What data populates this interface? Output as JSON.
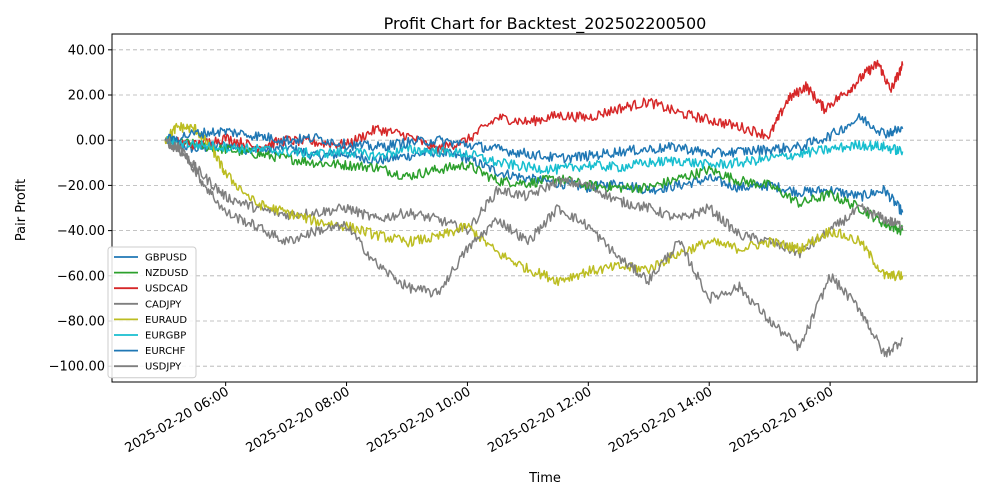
{
  "chart_data": {
    "type": "line",
    "title": "Profit Chart for Backtest_202502200500",
    "xlabel": "Time",
    "ylabel": "Pair Profit",
    "ylim": [
      -107,
      47
    ],
    "y_ticks": [
      {
        "value": 40,
        "label": "40.00"
      },
      {
        "value": 20,
        "label": "20.00"
      },
      {
        "value": 0,
        "label": "0.00"
      },
      {
        "value": -20,
        "label": "−20.00"
      },
      {
        "value": -40,
        "label": "−40.00"
      },
      {
        "value": -60,
        "label": "−60.00"
      },
      {
        "value": -80,
        "label": "−80.00"
      },
      {
        "value": -100,
        "label": "−100.00"
      }
    ],
    "xlim_hours": [
      4.12,
      18.43
    ],
    "x_ticks": [
      {
        "hour": 6,
        "label": "2025-02-20 06:00"
      },
      {
        "hour": 8,
        "label": "2025-02-20 08:00"
      },
      {
        "hour": 10,
        "label": "2025-02-20 10:00"
      },
      {
        "hour": 12,
        "label": "2025-02-20 12:00"
      },
      {
        "hour": 14,
        "label": "2025-02-20 14:00"
      },
      {
        "hour": 16,
        "label": "2025-02-20 16:00"
      }
    ],
    "grid": "horizontal-dashed",
    "legend_position": "lower-left",
    "series": [
      {
        "name": "GBPUSD",
        "color": "#1f77b4",
        "x": [
          5.0,
          5.5,
          6.0,
          6.5,
          7.0,
          7.5,
          8.0,
          8.5,
          9.0,
          9.5,
          10.0,
          10.5,
          11.0,
          11.5,
          12.0,
          12.5,
          13.0,
          13.5,
          14.0,
          14.5,
          15.0,
          15.5,
          16.0,
          16.5,
          16.9,
          17.2
        ],
        "y": [
          0,
          -4,
          -2,
          -5,
          -3,
          -7,
          -6,
          -9,
          -7,
          -5,
          -8,
          -14,
          -17,
          -19,
          -21,
          -19,
          -22,
          -20,
          -17,
          -21,
          -20,
          -23,
          -22,
          -25,
          -22,
          -32
        ]
      },
      {
        "name": "NZDUSD",
        "color": "#2ca02c",
        "x": [
          5.0,
          5.5,
          6.0,
          6.5,
          7.0,
          7.5,
          8.0,
          8.5,
          9.0,
          9.5,
          10.0,
          10.5,
          11.0,
          11.5,
          12.0,
          12.5,
          13.0,
          13.5,
          14.0,
          14.5,
          15.0,
          15.5,
          16.0,
          16.5,
          16.9,
          17.2
        ],
        "y": [
          0,
          -2,
          -4,
          -6,
          -8,
          -10,
          -11,
          -12,
          -16,
          -13,
          -11,
          -18,
          -19,
          -17,
          -20,
          -21,
          -21,
          -17,
          -13,
          -18,
          -20,
          -28,
          -24,
          -30,
          -37,
          -40
        ]
      },
      {
        "name": "USDCAD",
        "color": "#d62728",
        "x": [
          5.0,
          5.5,
          6.0,
          6.5,
          7.0,
          7.5,
          8.0,
          8.5,
          9.0,
          9.5,
          10.0,
          10.5,
          11.0,
          11.5,
          12.0,
          12.5,
          13.0,
          13.5,
          14.0,
          14.5,
          15.0,
          15.3,
          15.6,
          15.9,
          16.3,
          16.6,
          16.8,
          17.0,
          17.2
        ],
        "y": [
          0,
          -2,
          1,
          -3,
          0,
          -1,
          -2,
          5,
          2,
          -4,
          0,
          10,
          8,
          11,
          10,
          14,
          17,
          12,
          9,
          6,
          2,
          18,
          24,
          14,
          22,
          30,
          34,
          22,
          33
        ]
      },
      {
        "name": "CADJPY",
        "color": "#7f7f7f",
        "x": [
          5.0,
          5.3,
          5.6,
          6.0,
          6.5,
          7.0,
          7.5,
          8.0,
          8.5,
          9.0,
          9.5,
          10.0,
          10.5,
          11.0,
          11.5,
          12.0,
          12.5,
          13.0,
          13.5,
          14.0,
          14.5,
          15.0,
          15.5,
          16.0,
          16.5,
          16.9,
          17.2
        ],
        "y": [
          0,
          -6,
          -15,
          -25,
          -30,
          -33,
          -32,
          -30,
          -35,
          -32,
          -35,
          -40,
          -22,
          -25,
          -18,
          -20,
          -27,
          -30,
          -35,
          -30,
          -42,
          -45,
          -50,
          -40,
          -30,
          -35,
          -38
        ]
      },
      {
        "name": "EURAUD",
        "color": "#bcbd22",
        "x": [
          5.0,
          5.2,
          5.5,
          5.8,
          6.0,
          6.5,
          7.0,
          7.5,
          8.0,
          8.5,
          9.0,
          9.5,
          10.0,
          10.5,
          11.0,
          11.5,
          12.0,
          12.5,
          13.0,
          13.5,
          14.0,
          14.5,
          15.0,
          15.5,
          16.0,
          16.5,
          16.9,
          17.2
        ],
        "y": [
          0,
          6,
          5,
          -5,
          -15,
          -28,
          -32,
          -36,
          -38,
          -42,
          -45,
          -43,
          -38,
          -50,
          -57,
          -62,
          -58,
          -56,
          -57,
          -50,
          -45,
          -48,
          -45,
          -48,
          -40,
          -45,
          -60,
          -60
        ]
      },
      {
        "name": "EURGBP",
        "color": "#17becf",
        "x": [
          5.0,
          5.5,
          6.0,
          6.5,
          7.0,
          7.5,
          8.0,
          8.5,
          9.0,
          9.5,
          10.0,
          10.5,
          11.0,
          11.5,
          12.0,
          12.5,
          13.0,
          13.5,
          14.0,
          14.5,
          15.0,
          15.5,
          16.0,
          16.5,
          16.9,
          17.2
        ],
        "y": [
          0,
          -2,
          -3,
          -4,
          -5,
          -6,
          -5,
          -7,
          -4,
          -5,
          -6,
          -10,
          -12,
          -13,
          -11,
          -12,
          -10,
          -9,
          -11,
          -10,
          -8,
          -6,
          -4,
          -2,
          -3,
          -5
        ]
      },
      {
        "name": "EURCHF",
        "color": "#1f77b4",
        "x": [
          5.0,
          5.5,
          6.0,
          6.5,
          7.0,
          7.5,
          8.0,
          8.5,
          9.0,
          9.5,
          10.0,
          10.5,
          11.0,
          11.5,
          12.0,
          12.5,
          13.0,
          13.5,
          14.0,
          14.5,
          15.0,
          15.5,
          16.0,
          16.5,
          16.9,
          17.2
        ],
        "y": [
          0,
          3,
          4,
          2,
          0,
          1,
          -2,
          -3,
          -1,
          0,
          -2,
          -4,
          -6,
          -8,
          -7,
          -5,
          -4,
          -3,
          -6,
          -5,
          -4,
          -3,
          2,
          10,
          3,
          5
        ]
      },
      {
        "name": "USDJPY",
        "color": "#7f7f7f",
        "x": [
          5.0,
          5.3,
          5.6,
          6.0,
          6.5,
          7.0,
          7.5,
          8.0,
          8.5,
          9.0,
          9.5,
          10.0,
          10.5,
          11.0,
          11.5,
          12.0,
          12.5,
          13.0,
          13.5,
          14.0,
          14.5,
          15.0,
          15.5,
          16.0,
          16.5,
          16.9,
          17.2
        ],
        "y": [
          0,
          -5,
          -18,
          -32,
          -38,
          -45,
          -40,
          -38,
          -55,
          -65,
          -68,
          -48,
          -35,
          -45,
          -30,
          -38,
          -52,
          -62,
          -45,
          -70,
          -65,
          -80,
          -92,
          -60,
          -75,
          -95,
          -88
        ]
      }
    ]
  }
}
